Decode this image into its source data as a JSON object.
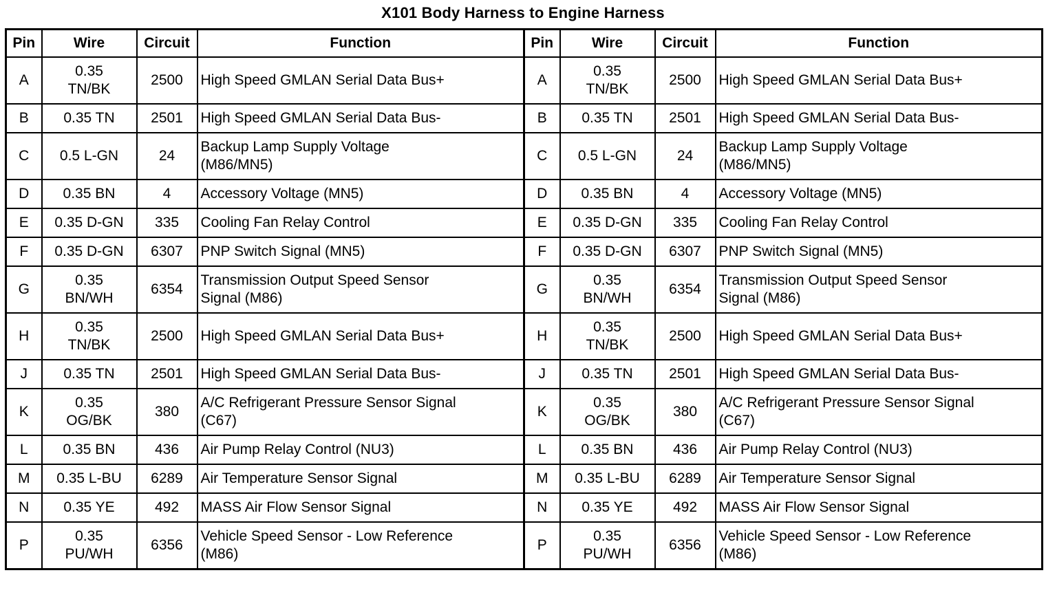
{
  "title": "X101 Body Harness to Engine Harness",
  "colors": {
    "background": "#ffffff",
    "border": "#000000",
    "text": "#000000"
  },
  "tables": [
    {
      "side": "left",
      "headers": [
        "Pin",
        "Wire",
        "Circuit",
        "Function"
      ],
      "rows": [
        {
          "pin": "A",
          "wire": "0.35\nTN/BK",
          "circuit": "2500",
          "function": "High Speed GMLAN Serial Data Bus+"
        },
        {
          "pin": "B",
          "wire": "0.35 TN",
          "circuit": "2501",
          "function": "High Speed GMLAN Serial Data Bus-"
        },
        {
          "pin": "C",
          "wire": "0.5 L-GN",
          "circuit": "24",
          "function": "Backup Lamp Supply Voltage\n(M86/MN5)"
        },
        {
          "pin": "D",
          "wire": "0.35 BN",
          "circuit": "4",
          "function": "Accessory Voltage (MN5)"
        },
        {
          "pin": "E",
          "wire": "0.35 D-GN",
          "circuit": "335",
          "function": "Cooling Fan Relay Control"
        },
        {
          "pin": "F",
          "wire": "0.35 D-GN",
          "circuit": "6307",
          "function": "PNP Switch Signal (MN5)"
        },
        {
          "pin": "G",
          "wire": "0.35\nBN/WH",
          "circuit": "6354",
          "function": "Transmission Output Speed Sensor\nSignal (M86)"
        },
        {
          "pin": "H",
          "wire": "0.35\nTN/BK",
          "circuit": "2500",
          "function": "High Speed GMLAN Serial Data Bus+"
        },
        {
          "pin": "J",
          "wire": "0.35 TN",
          "circuit": "2501",
          "function": "High Speed GMLAN Serial Data Bus-"
        },
        {
          "pin": "K",
          "wire": "0.35\nOG/BK",
          "circuit": "380",
          "function": "A/C Refrigerant Pressure Sensor Signal\n(C67)"
        },
        {
          "pin": "L",
          "wire": "0.35 BN",
          "circuit": "436",
          "function": "Air Pump Relay Control (NU3)"
        },
        {
          "pin": "M",
          "wire": "0.35 L-BU",
          "circuit": "6289",
          "function": "Air Temperature Sensor Signal"
        },
        {
          "pin": "N",
          "wire": "0.35 YE",
          "circuit": "492",
          "function": "MASS Air Flow Sensor Signal"
        },
        {
          "pin": "P",
          "wire": "0.35\nPU/WH",
          "circuit": "6356",
          "function": "Vehicle Speed Sensor - Low Reference\n(M86)"
        }
      ]
    },
    {
      "side": "right",
      "headers": [
        "Pin",
        "Wire",
        "Circuit",
        "Function"
      ],
      "rows": [
        {
          "pin": "A",
          "wire": "0.35\nTN/BK",
          "circuit": "2500",
          "function": "High Speed GMLAN Serial Data Bus+"
        },
        {
          "pin": "B",
          "wire": "0.35 TN",
          "circuit": "2501",
          "function": "High Speed GMLAN Serial Data Bus-"
        },
        {
          "pin": "C",
          "wire": "0.5 L-GN",
          "circuit": "24",
          "function": "Backup Lamp Supply Voltage\n(M86/MN5)"
        },
        {
          "pin": "D",
          "wire": "0.35 BN",
          "circuit": "4",
          "function": "Accessory Voltage (MN5)"
        },
        {
          "pin": "E",
          "wire": "0.35 D-GN",
          "circuit": "335",
          "function": "Cooling Fan Relay Control"
        },
        {
          "pin": "F",
          "wire": "0.35 D-GN",
          "circuit": "6307",
          "function": "PNP Switch Signal (MN5)"
        },
        {
          "pin": "G",
          "wire": "0.35\nBN/WH",
          "circuit": "6354",
          "function": "Transmission Output Speed Sensor\nSignal (M86)"
        },
        {
          "pin": "H",
          "wire": "0.35\nTN/BK",
          "circuit": "2500",
          "function": "High Speed GMLAN Serial Data Bus+"
        },
        {
          "pin": "J",
          "wire": "0.35 TN",
          "circuit": "2501",
          "function": "High Speed GMLAN Serial Data Bus-"
        },
        {
          "pin": "K",
          "wire": "0.35\nOG/BK",
          "circuit": "380",
          "function": "A/C Refrigerant Pressure Sensor Signal\n(C67)"
        },
        {
          "pin": "L",
          "wire": "0.35 BN",
          "circuit": "436",
          "function": "Air Pump Relay Control (NU3)"
        },
        {
          "pin": "M",
          "wire": "0.35 L-BU",
          "circuit": "6289",
          "function": "Air Temperature Sensor Signal"
        },
        {
          "pin": "N",
          "wire": "0.35 YE",
          "circuit": "492",
          "function": "MASS Air Flow Sensor Signal"
        },
        {
          "pin": "P",
          "wire": "0.35\nPU/WH",
          "circuit": "6356",
          "function": "Vehicle Speed Sensor - Low Reference\n(M86)"
        }
      ]
    }
  ]
}
